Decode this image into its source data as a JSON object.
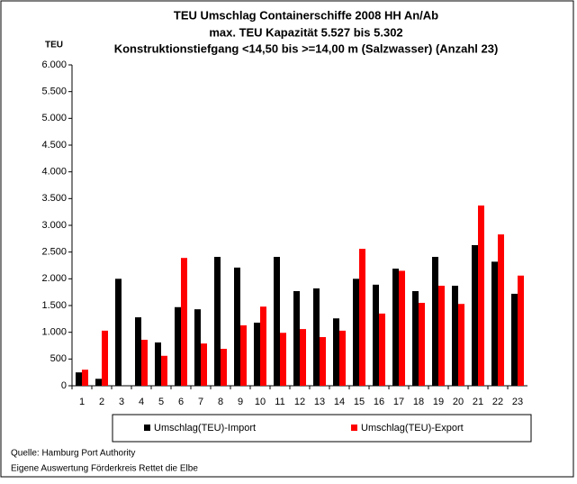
{
  "chart_data": {
    "type": "bar",
    "title_lines": [
      "TEU Umschlag Containerschiffe 2008 HH An/Ab",
      "max. TEU Kapazität  5.527 bis 5.302",
      "Konstruktionstiefgang <14,50 bis >=14,00 m (Salzwasser)  (Anzahl 23)"
    ],
    "y_label": "TEU",
    "categories": [
      "1",
      "2",
      "3",
      "4",
      "5",
      "6",
      "7",
      "8",
      "9",
      "10",
      "11",
      "12",
      "13",
      "14",
      "15",
      "16",
      "17",
      "18",
      "19",
      "20",
      "21",
      "22",
      "23"
    ],
    "series": [
      {
        "name": "Umschlag(TEU)-Import",
        "color": "#000000",
        "values": [
          250,
          130,
          2000,
          1280,
          810,
          1470,
          1430,
          2410,
          2210,
          1180,
          2410,
          1770,
          1820,
          1260,
          2000,
          1890,
          2190,
          1770,
          2410,
          1870,
          2630,
          2320,
          1720
        ]
      },
      {
        "name": "Umschlag(TEU)-Export",
        "color": "#ff0000",
        "values": [
          300,
          1030,
          0,
          860,
          560,
          2390,
          790,
          690,
          1130,
          1480,
          990,
          1060,
          910,
          1030,
          2560,
          1350,
          2150,
          1550,
          1870,
          1530,
          3370,
          2830,
          2060
        ]
      }
    ],
    "ylim": [
      0,
      6000
    ],
    "yticks": [
      0,
      500,
      {
        "value": 1000,
        "label": "1.000"
      },
      {
        "value": 1500,
        "label": "1.500"
      },
      {
        "value": 2000,
        "label": "2.000"
      },
      {
        "value": 2500,
        "label": "2.500"
      },
      {
        "value": 3000,
        "label": "3.000"
      },
      {
        "value": 3500,
        "label": "3.500"
      },
      {
        "value": 4000,
        "label": "4.000"
      },
      {
        "value": 4500,
        "label": "4.500"
      },
      {
        "value": 5000,
        "label": "5.000"
      },
      {
        "value": 5500,
        "label": "5.500"
      },
      {
        "value": 6000,
        "label": "6.000"
      }
    ],
    "grid": false,
    "legend": "bottom",
    "source_lines": [
      "Quelle: Hamburg Port Authority",
      "Eigene Auswertung Förderkreis Rettet die Elbe"
    ]
  }
}
